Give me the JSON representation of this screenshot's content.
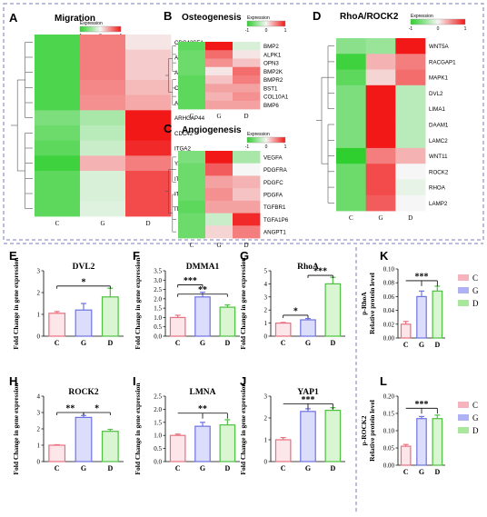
{
  "colors": {
    "low": "#2fcf2f",
    "mid": "#f6f6f6",
    "high": "#f21818",
    "bar_c_fill": "#fde6ea",
    "bar_c_stroke": "#e8707f",
    "bar_g_fill": "#dcdcfb",
    "bar_g_stroke": "#6d72e2",
    "bar_d_fill": "#d9f5d2",
    "bar_d_stroke": "#4ec042",
    "legend_c": "#f6b3bd",
    "legend_g": "#aeb2f5",
    "legend_d": "#a9e89c",
    "frame": "#7a7ab8"
  },
  "chart_data": [
    {
      "panel": "A",
      "type": "heatmap",
      "title": "Migration",
      "legend_label": "Expression",
      "scale_ticks": [
        "-1",
        "0",
        "1"
      ],
      "columns": [
        "C",
        "G",
        "D"
      ],
      "rows": [
        "CDC42SE1",
        "ARHGEF3",
        "ARHGEF12",
        "CDC42SP3",
        "ARHGAP12",
        "ARHGAP44",
        "CDC42",
        "ITGA2",
        "YAP1",
        "ITGAV",
        "ITGB1",
        "ITGA1"
      ],
      "values": [
        [
          -1.1,
          0.7,
          0.1
        ],
        [
          -1.1,
          0.7,
          0.25
        ],
        [
          -1.1,
          0.7,
          0.25
        ],
        [
          -1.1,
          0.65,
          0.35
        ],
        [
          -1.1,
          0.6,
          0.45
        ],
        [
          -0.8,
          -0.5,
          1.4
        ],
        [
          -0.9,
          -0.4,
          1.3
        ],
        [
          -1.0,
          -0.3,
          1.2
        ],
        [
          -1.2,
          0.4,
          0.7
        ],
        [
          -1.0,
          -0.2,
          1.0
        ],
        [
          -1.0,
          -0.2,
          1.0
        ],
        [
          -1.0,
          -0.15,
          1.0
        ]
      ]
    },
    {
      "panel": "B",
      "type": "heatmap",
      "title": "Osteogenesis",
      "legend_label": "Expression",
      "scale_ticks": [
        "-1",
        "0",
        "1"
      ],
      "columns": [
        "C",
        "G",
        "D"
      ],
      "rows": [
        "BMP2",
        "ALPK1",
        "OPN3",
        "BMP2K",
        "BMPR2",
        "BST1",
        "COL10A1",
        "BMP6"
      ],
      "values": [
        [
          -1.0,
          1.3,
          -0.2
        ],
        [
          -0.9,
          0.8,
          0.1
        ],
        [
          -0.9,
          0.6,
          0.3
        ],
        [
          -0.9,
          0.1,
          0.8
        ],
        [
          -1.0,
          0.3,
          0.7
        ],
        [
          -1.0,
          0.5,
          0.5
        ],
        [
          -1.0,
          0.4,
          0.6
        ],
        [
          -1.0,
          0.5,
          0.5
        ]
      ]
    },
    {
      "panel": "C",
      "type": "heatmap",
      "title": "Angiogenesis",
      "legend_label": "Expression",
      "scale_ticks": [
        "-1",
        "0",
        "1"
      ],
      "columns": [
        "C",
        "G",
        "D"
      ],
      "rows": [
        "VEGFA",
        "PDGFRA",
        "PDGFC",
        "PDGFA",
        "TGFBR1",
        "TGFA1P6",
        "ANGPT1"
      ],
      "values": [
        [
          -0.8,
          1.3,
          -0.5
        ],
        [
          -0.9,
          0.9,
          0.0
        ],
        [
          -0.9,
          0.5,
          0.4
        ],
        [
          -0.9,
          0.6,
          0.3
        ],
        [
          -1.0,
          0.5,
          0.5
        ],
        [
          -0.9,
          -0.3,
          1.2
        ],
        [
          -0.9,
          0.2,
          0.7
        ]
      ]
    },
    {
      "panel": "D",
      "type": "heatmap",
      "title": "RhoA/ROCK2",
      "legend_label": "Expression",
      "scale_ticks": [
        "-1",
        "0",
        "1"
      ],
      "columns": [
        "C",
        "G",
        "D"
      ],
      "rows": [
        "WNT5A",
        "RACGAP1",
        "MAPK1",
        "DVL2",
        "LIMA1",
        "DAAM1",
        "LAMC2",
        "WNT11",
        "ROCK2",
        "RHOA",
        "LAMP2"
      ],
      "values": [
        [
          -0.7,
          -0.6,
          1.4
        ],
        [
          -1.2,
          0.4,
          0.7
        ],
        [
          -1.0,
          0.2,
          0.8
        ],
        [
          -0.8,
          1.4,
          -0.4
        ],
        [
          -0.8,
          1.4,
          -0.4
        ],
        [
          -0.8,
          1.4,
          -0.4
        ],
        [
          -0.8,
          1.4,
          -0.4
        ],
        [
          -1.3,
          0.7,
          0.4
        ],
        [
          -0.9,
          1.0,
          0.0
        ],
        [
          -0.9,
          1.0,
          -0.1
        ],
        [
          -0.9,
          0.9,
          0.0
        ]
      ]
    },
    {
      "panel": "E",
      "type": "bar",
      "title": "DVL2",
      "ylabel": "Fold Change in gene expression",
      "categories": [
        "C",
        "G",
        "D"
      ],
      "values": [
        1.05,
        1.2,
        1.8
      ],
      "errors": [
        0.08,
        0.3,
        0.4
      ],
      "ylim": [
        0,
        3
      ],
      "yticks": [
        "0",
        "1",
        "2",
        "3"
      ],
      "sig": [
        {
          "from": 0,
          "to": 2,
          "label": "*",
          "y": 2.3
        }
      ]
    },
    {
      "panel": "F",
      "type": "bar",
      "title": "DMMA1",
      "ylabel": "Fold Change in gene expression",
      "categories": [
        "C",
        "G",
        "D"
      ],
      "values": [
        1.0,
        2.1,
        1.55
      ],
      "errors": [
        0.12,
        0.25,
        0.12
      ],
      "ylim": [
        0,
        3.5
      ],
      "yticks": [
        "0.0",
        "0.5",
        "1.0",
        "1.5",
        "2.0",
        "2.5",
        "3.0",
        "3.5"
      ],
      "sig": [
        {
          "from": 0,
          "to": 1,
          "label": "***",
          "y": 2.75
        },
        {
          "from": 0,
          "to": 2,
          "label": "**",
          "y": 2.25
        }
      ]
    },
    {
      "panel": "G",
      "type": "bar",
      "title": "RhoA",
      "ylabel": "Fold Change in gene expression",
      "categories": [
        "C",
        "G",
        "D"
      ],
      "values": [
        1.0,
        1.25,
        4.0
      ],
      "errors": [
        0.05,
        0.1,
        0.5
      ],
      "ylim": [
        0,
        5
      ],
      "yticks": [
        "0",
        "1",
        "2",
        "3",
        "4",
        "5"
      ],
      "sig": [
        {
          "from": 0,
          "to": 1,
          "label": "*",
          "y": 1.6
        },
        {
          "from": 1,
          "to": 2,
          "label": "***",
          "y": 4.65
        }
      ]
    },
    {
      "panel": "K",
      "type": "bar",
      "title": "",
      "ylabel": "p-RhoA Relative protein level",
      "categories": [
        "C",
        "G",
        "D"
      ],
      "values": [
        0.02,
        0.06,
        0.068
      ],
      "errors": [
        0.004,
        0.008,
        0.007
      ],
      "ylim": [
        0,
        0.1
      ],
      "yticks": [
        "0.00",
        "0.02",
        "0.04",
        "0.06",
        "0.08",
        "0.10"
      ],
      "sig": [
        {
          "from": 0,
          "to": 2,
          "label": "***",
          "y": 0.083,
          "bracket_to": 1
        }
      ],
      "legend": [
        "C",
        "G",
        "D"
      ]
    },
    {
      "panel": "H",
      "type": "bar",
      "title": "ROCK2",
      "ylabel": "Fold Change in gene expression",
      "categories": [
        "C",
        "G",
        "D"
      ],
      "values": [
        1.0,
        2.7,
        1.85
      ],
      "errors": [
        0.03,
        0.12,
        0.12
      ],
      "ylim": [
        0,
        4
      ],
      "yticks": [
        "0",
        "1",
        "2",
        "3",
        "4"
      ],
      "sig": [
        {
          "from": 0,
          "to": 1,
          "label": "**",
          "y": 3.0
        },
        {
          "from": 1,
          "to": 2,
          "label": "*",
          "y": 3.0
        }
      ]
    },
    {
      "panel": "I",
      "type": "bar",
      "title": "LMNA",
      "ylabel": "Fold Change in gene expression",
      "categories": [
        "C",
        "G",
        "D"
      ],
      "values": [
        1.0,
        1.35,
        1.4
      ],
      "errors": [
        0.05,
        0.15,
        0.2
      ],
      "ylim": [
        0,
        2.5
      ],
      "yticks": [
        "0.0",
        "0.5",
        "1.0",
        "1.5",
        "2.0",
        "2.5"
      ],
      "sig": [
        {
          "from": 0,
          "to": 2,
          "label": "**",
          "y": 1.85,
          "bracket_to": 1
        }
      ]
    },
    {
      "panel": "J",
      "type": "bar",
      "title": "YAP1",
      "ylabel": "Fold Change in gene expression",
      "categories": [
        "C",
        "G",
        "D"
      ],
      "values": [
        1.0,
        2.3,
        2.35
      ],
      "errors": [
        0.1,
        0.12,
        0.12
      ],
      "ylim": [
        0,
        3
      ],
      "yticks": [
        "0",
        "1",
        "2",
        "3"
      ],
      "sig": [
        {
          "from": 0,
          "to": 2,
          "label": "***",
          "y": 2.65,
          "bracket_to": 1
        }
      ]
    },
    {
      "panel": "L",
      "type": "bar",
      "title": "",
      "ylabel": "p-ROCK2 Relative protein level",
      "categories": [
        "C",
        "G",
        "D"
      ],
      "values": [
        0.055,
        0.135,
        0.135
      ],
      "errors": [
        0.005,
        0.006,
        0.01
      ],
      "ylim": [
        0,
        0.2
      ],
      "yticks": [
        "0.00",
        "0.05",
        "0.10",
        "0.15",
        "0.20"
      ],
      "sig": [
        {
          "from": 0,
          "to": 2,
          "label": "***",
          "y": 0.165,
          "bracket_to": 1
        }
      ],
      "legend": [
        "C",
        "G",
        "D"
      ]
    }
  ]
}
